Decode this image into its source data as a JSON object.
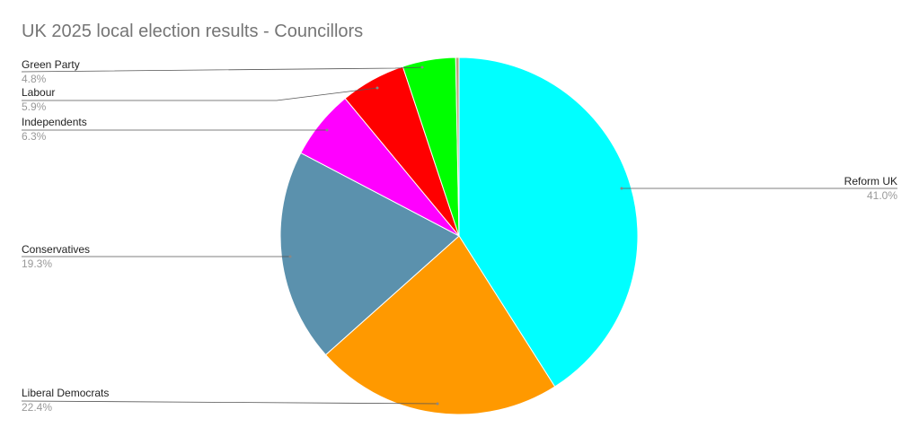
{
  "chart_data": {
    "type": "pie",
    "title": "UK 2025 local election results - Councillors",
    "slices": [
      {
        "name": "Reform UK",
        "value": 41.0,
        "label": "41.0%",
        "color": "#00ffff"
      },
      {
        "name": "Liberal Democrats",
        "value": 22.4,
        "label": "22.4%",
        "color": "#ff9900"
      },
      {
        "name": "Conservatives",
        "value": 19.3,
        "label": "19.3%",
        "color": "#5b91ad"
      },
      {
        "name": "Independents",
        "value": 6.3,
        "label": "6.3%",
        "color": "#ff00ff"
      },
      {
        "name": "Labour",
        "value": 5.9,
        "label": "5.9%",
        "color": "#ff0000"
      },
      {
        "name": "Green Party",
        "value": 4.8,
        "label": "4.8%",
        "color": "#00ff00"
      },
      {
        "value": 0.3,
        "color": "#b8a27a"
      }
    ],
    "start_angle": "top",
    "direction": "clockwise"
  }
}
